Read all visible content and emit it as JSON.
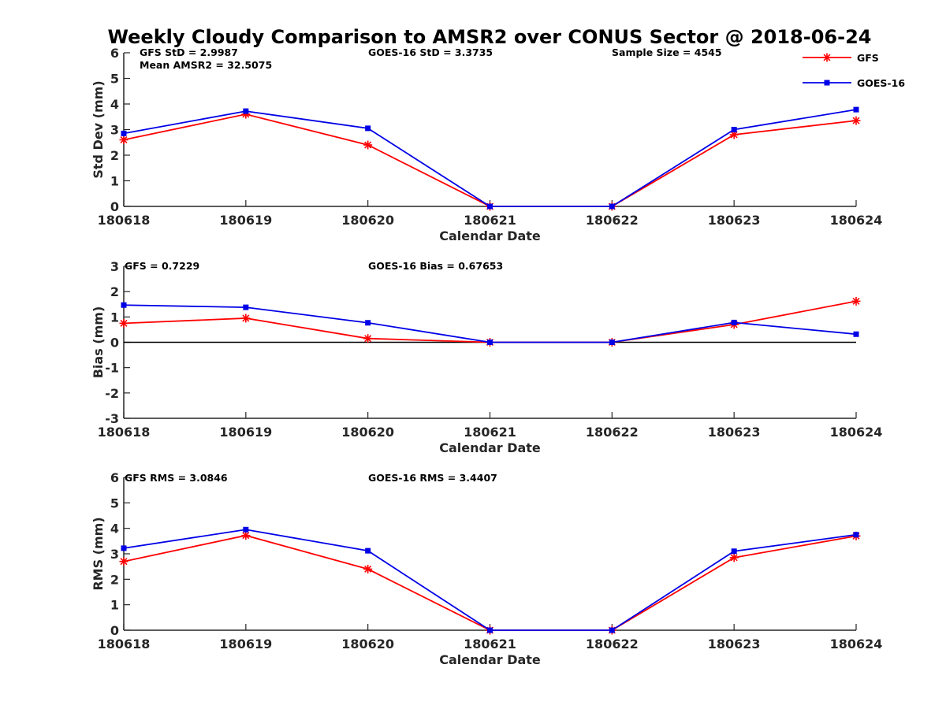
{
  "title": "Weekly Cloudy Comparison to AMSR2 over CONUS Sector @ 2018-06-24",
  "legend": {
    "placement": "top-right"
  },
  "colors": {
    "GFS": "#ff0000",
    "GOES-16": "#0000e6",
    "zero_line": "#000000"
  },
  "chart_data": [
    {
      "type": "line",
      "panel": "std-dev",
      "categories": [
        "180618",
        "180619",
        "180620",
        "180621",
        "180622",
        "180623",
        "180624"
      ],
      "xlabel": "Calendar Date",
      "ylabel": "Std Dev (mm)",
      "ylim": [
        0,
        6
      ],
      "yticks": [
        "0",
        "1",
        "2",
        "3",
        "4",
        "5",
        "6"
      ],
      "annotations": [
        "GFS StD = 2.9987",
        "Mean AMSR2 = 32.5075",
        "GOES-16 StD = 3.3735",
        "Sample Size = 4545"
      ],
      "series": [
        {
          "name": "GFS",
          "marker": "asterisk",
          "values": [
            2.6,
            3.6,
            2.4,
            0.0,
            0.0,
            2.8,
            3.35
          ]
        },
        {
          "name": "GOES-16",
          "marker": "square",
          "values": [
            2.85,
            3.72,
            3.05,
            0.0,
            0.0,
            3.0,
            3.78
          ]
        }
      ]
    },
    {
      "type": "line",
      "panel": "bias",
      "categories": [
        "180618",
        "180619",
        "180620",
        "180621",
        "180622",
        "180623",
        "180624"
      ],
      "xlabel": "Calendar Date",
      "ylabel": "Bias (mm)",
      "ylim": [
        -3,
        3
      ],
      "yticks": [
        "-3",
        "-2",
        "-1",
        "0",
        "1",
        "2",
        "3"
      ],
      "zero_line": true,
      "annotations": [
        "GFS = 0.7229",
        "GOES-16 Bias  = 0.67653"
      ],
      "series": [
        {
          "name": "GFS",
          "marker": "asterisk",
          "values": [
            0.75,
            0.95,
            0.15,
            0.0,
            0.0,
            0.7,
            1.62
          ]
        },
        {
          "name": "GOES-16",
          "marker": "square",
          "values": [
            1.47,
            1.38,
            0.77,
            0.0,
            0.0,
            0.78,
            0.32
          ]
        }
      ]
    },
    {
      "type": "line",
      "panel": "rms",
      "categories": [
        "180618",
        "180619",
        "180620",
        "180621",
        "180622",
        "180623",
        "180624"
      ],
      "xlabel": "Calendar Date",
      "ylabel": "RMS (mm)",
      "ylim": [
        0,
        6
      ],
      "yticks": [
        "0",
        "1",
        "2",
        "3",
        "4",
        "5",
        "6"
      ],
      "annotations": [
        "GFS RMS = 3.0846",
        "GOES-16 RMS = 3.4407"
      ],
      "series": [
        {
          "name": "GFS",
          "marker": "asterisk",
          "values": [
            2.7,
            3.72,
            2.4,
            0.0,
            0.0,
            2.85,
            3.7
          ]
        },
        {
          "name": "GOES-16",
          "marker": "square",
          "values": [
            3.22,
            3.95,
            3.12,
            0.0,
            0.0,
            3.1,
            3.75
          ]
        }
      ]
    }
  ]
}
